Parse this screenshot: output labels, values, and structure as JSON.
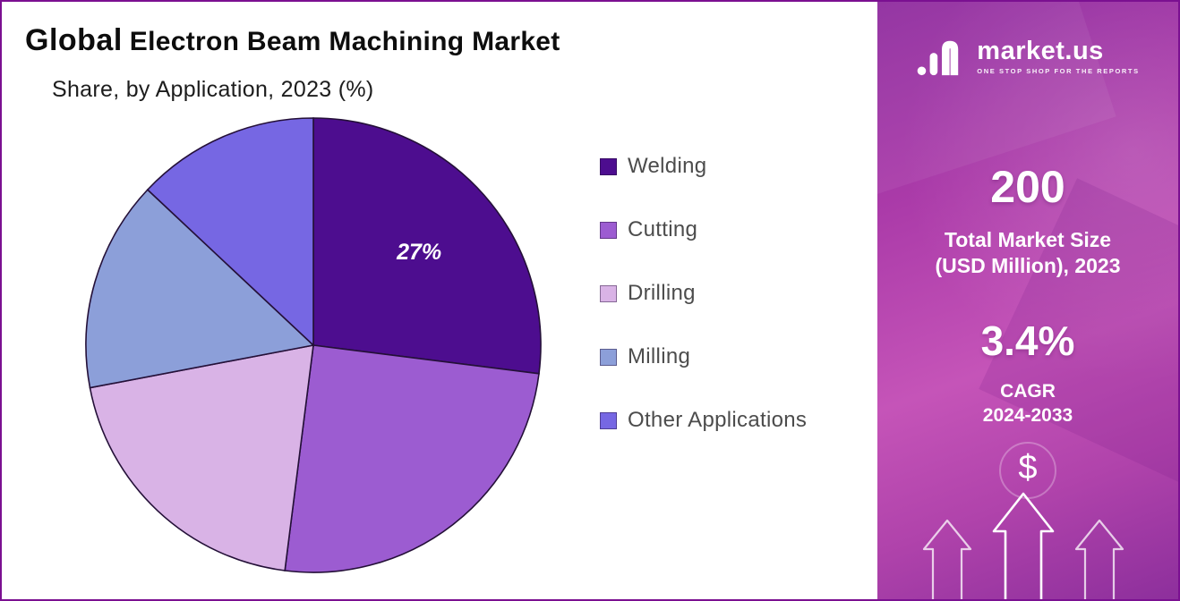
{
  "header": {
    "title_bold": "Global",
    "title_rest": "Electron Beam Machining Market",
    "subtitle": "Share, by Application, 2023 (%)"
  },
  "chart_data": {
    "type": "pie",
    "title": "Global Electron Beam Machining Market",
    "subtitle": "Share, by Application, 2023 (%)",
    "labels": [
      "Welding",
      "Cutting",
      "Drilling",
      "Milling",
      "Other Applications"
    ],
    "values": [
      27,
      25,
      20,
      15,
      13
    ],
    "colors": [
      "#4d0d8f",
      "#9c5cd1",
      "#d9b3e6",
      "#8c9fd9",
      "#7667e3"
    ],
    "slice_stroke_color": "#241038",
    "start_angle": "top, clockwise",
    "legend_position": "right",
    "data_label": {
      "slice": "Welding",
      "text": "27%"
    }
  },
  "panel": {
    "logo_name": "market.us",
    "logo_tagline": "ONE STOP SHOP FOR THE REPORTS",
    "market_size_value": "200",
    "market_size_label_line1": "Total Market Size",
    "market_size_label_line2": "(USD Million), 2023",
    "cagr_value": "3.4%",
    "cagr_label_line1": "CAGR",
    "cagr_label_line2": "2024-2033",
    "dollar_symbol": "$",
    "accent_color": "#b043ab"
  }
}
